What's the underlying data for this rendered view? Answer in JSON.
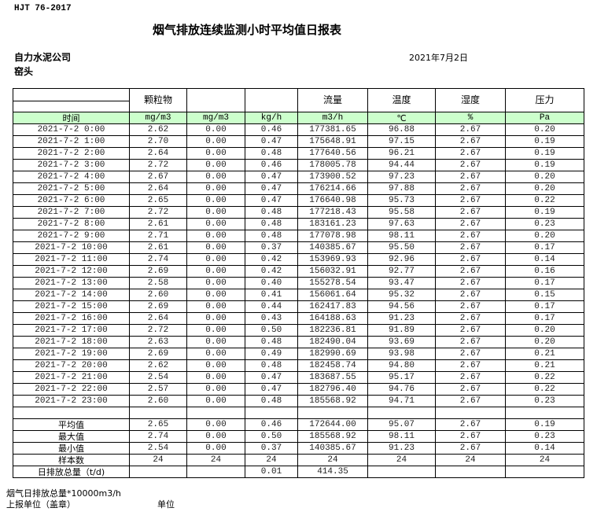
{
  "standard": "HJT  76-2017",
  "title": "烟气排放连续监测小时平均值日报表",
  "company": "自力水泥公司",
  "site": "窑头",
  "date": "2021年7月2日",
  "table": {
    "headers": [
      "",
      "颗粒物",
      "",
      "",
      "流量",
      "温度",
      "湿度",
      "压力"
    ],
    "units": [
      "时间",
      "mg/m3",
      "mg/m3",
      "kg/h",
      "m3/h",
      "℃",
      "%",
      "Pa"
    ],
    "rows": [
      [
        "2021-7-2 0:00",
        "2.62",
        "0.00",
        "0.46",
        "177381.65",
        "96.88",
        "2.67",
        "0.20"
      ],
      [
        "2021-7-2 1:00",
        "2.70",
        "0.00",
        "0.47",
        "175648.91",
        "97.15",
        "2.67",
        "0.19"
      ],
      [
        "2021-7-2 2:00",
        "2.64",
        "0.00",
        "0.48",
        "177640.56",
        "96.21",
        "2.67",
        "0.19"
      ],
      [
        "2021-7-2 3:00",
        "2.72",
        "0.00",
        "0.46",
        "178005.78",
        "94.44",
        "2.67",
        "0.19"
      ],
      [
        "2021-7-2 4:00",
        "2.67",
        "0.00",
        "0.47",
        "173900.52",
        "97.23",
        "2.67",
        "0.20"
      ],
      [
        "2021-7-2 5:00",
        "2.64",
        "0.00",
        "0.47",
        "176214.66",
        "97.88",
        "2.67",
        "0.20"
      ],
      [
        "2021-7-2 6:00",
        "2.65",
        "0.00",
        "0.47",
        "176640.98",
        "95.73",
        "2.67",
        "0.22"
      ],
      [
        "2021-7-2 7:00",
        "2.72",
        "0.00",
        "0.48",
        "177218.43",
        "95.58",
        "2.67",
        "0.19"
      ],
      [
        "2021-7-2 8:00",
        "2.61",
        "0.00",
        "0.48",
        "183161.23",
        "97.63",
        "2.67",
        "0.23"
      ],
      [
        "2021-7-2 9:00",
        "2.71",
        "0.00",
        "0.48",
        "177078.98",
        "98.11",
        "2.67",
        "0.20"
      ],
      [
        "2021-7-2 10:00",
        "2.61",
        "0.00",
        "0.37",
        "140385.67",
        "95.50",
        "2.67",
        "0.17"
      ],
      [
        "2021-7-2 11:00",
        "2.74",
        "0.00",
        "0.42",
        "153969.93",
        "92.96",
        "2.67",
        "0.14"
      ],
      [
        "2021-7-2 12:00",
        "2.69",
        "0.00",
        "0.42",
        "156032.91",
        "92.77",
        "2.67",
        "0.16"
      ],
      [
        "2021-7-2 13:00",
        "2.58",
        "0.00",
        "0.40",
        "155278.54",
        "93.47",
        "2.67",
        "0.17"
      ],
      [
        "2021-7-2 14:00",
        "2.60",
        "0.00",
        "0.41",
        "156061.64",
        "95.32",
        "2.67",
        "0.15"
      ],
      [
        "2021-7-2 15:00",
        "2.69",
        "0.00",
        "0.44",
        "162417.83",
        "94.56",
        "2.67",
        "0.17"
      ],
      [
        "2021-7-2 16:00",
        "2.64",
        "0.00",
        "0.43",
        "164188.63",
        "91.23",
        "2.67",
        "0.17"
      ],
      [
        "2021-7-2 17:00",
        "2.72",
        "0.00",
        "0.50",
        "182236.81",
        "91.89",
        "2.67",
        "0.20"
      ],
      [
        "2021-7-2 18:00",
        "2.63",
        "0.00",
        "0.48",
        "182490.04",
        "93.69",
        "2.67",
        "0.20"
      ],
      [
        "2021-7-2 19:00",
        "2.69",
        "0.00",
        "0.49",
        "182990.69",
        "93.98",
        "2.67",
        "0.21"
      ],
      [
        "2021-7-2 20:00",
        "2.62",
        "0.00",
        "0.48",
        "182458.74",
        "94.80",
        "2.67",
        "0.21"
      ],
      [
        "2021-7-2 21:00",
        "2.54",
        "0.00",
        "0.47",
        "183687.55",
        "95.17",
        "2.67",
        "0.22"
      ],
      [
        "2021-7-2 22:00",
        "2.57",
        "0.00",
        "0.47",
        "182796.40",
        "94.76",
        "2.67",
        "0.22"
      ],
      [
        "2021-7-2 23:00",
        "2.60",
        "0.00",
        "0.48",
        "185568.92",
        "94.71",
        "2.67",
        "0.23"
      ]
    ],
    "summary": [
      [
        "",
        "",
        "",
        "",
        "",
        "",
        "",
        ""
      ],
      [
        "平均值",
        "2.65",
        "0.00",
        "0.46",
        "172644.00",
        "95.07",
        "2.67",
        "0.19"
      ],
      [
        "最大值",
        "2.74",
        "0.00",
        "0.50",
        "185568.92",
        "98.11",
        "2.67",
        "0.23"
      ],
      [
        "最小值",
        "2.54",
        "0.00",
        "0.37",
        "140385.67",
        "91.23",
        "2.67",
        "0.14"
      ],
      [
        "样本数",
        "24",
        "24",
        "24",
        "24",
        "24",
        "24",
        "24"
      ],
      [
        "日排放总量（t/d)",
        "",
        "",
        "0.01",
        "414.35",
        "",
        "",
        ""
      ]
    ]
  },
  "footer": {
    "note": "烟气日排放总量*10000m3/h",
    "reporter": "上报单位（盖章）",
    "unit": "单位"
  }
}
